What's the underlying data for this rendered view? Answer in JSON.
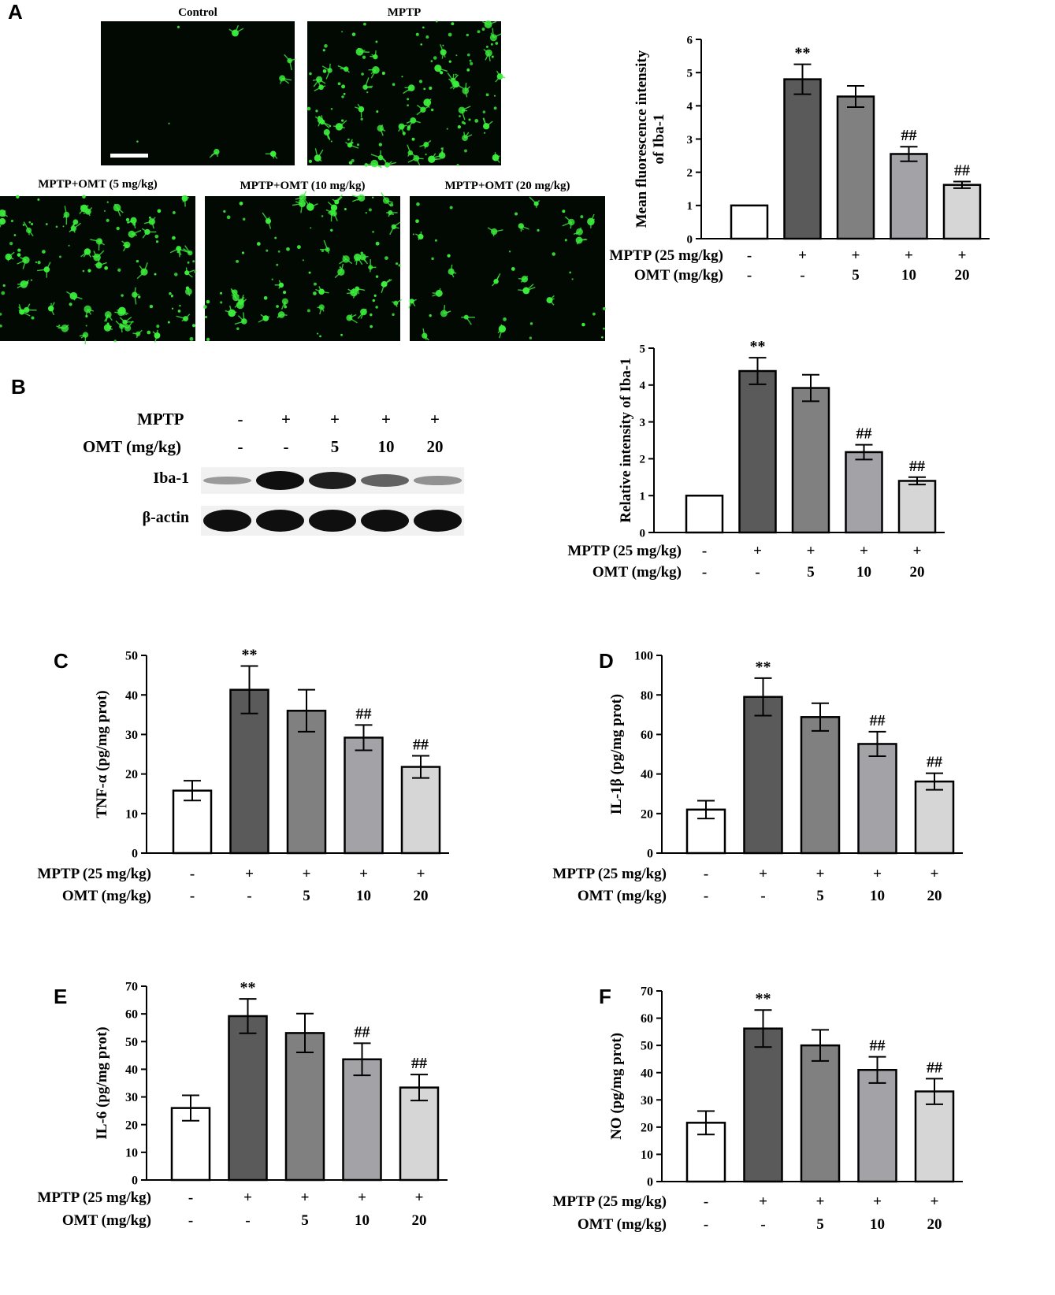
{
  "panels": {
    "A": "A",
    "B": "B",
    "C": "C",
    "D": "D",
    "E": "E",
    "F": "F"
  },
  "micrographs": [
    {
      "caption": "Control",
      "density": 8
    },
    {
      "caption": "MPTP",
      "density": 130
    },
    {
      "caption": "MPTP+OMT (5 mg/kg)",
      "density": 120
    },
    {
      "caption": "MPTP+OMT (10 mg/kg)",
      "density": 95
    },
    {
      "caption": "MPTP+OMT (20 mg/kg)",
      "density": 45
    }
  ],
  "western_blot": {
    "mptp_label": "MPTP",
    "omt_label": "OMT (mg/kg)",
    "mptp_signs": [
      "-",
      "+",
      "+",
      "+",
      "+"
    ],
    "omt_doses": [
      "-",
      "-",
      "5",
      "10",
      "20"
    ],
    "rows": [
      {
        "label": "Iba-1",
        "intensity": [
          0.25,
          1.0,
          0.92,
          0.55,
          0.3
        ]
      },
      {
        "label": "β-actin",
        "intensity": [
          1.0,
          1.0,
          1.0,
          1.0,
          1.0
        ]
      }
    ]
  },
  "treatment": {
    "mptp_label": "MPTP (25 mg/kg)",
    "omt_label": "OMT (mg/kg)",
    "mptp_signs": [
      "-",
      "+",
      "+",
      "+",
      "+"
    ],
    "omt_doses": [
      "-",
      "-",
      "5",
      "10",
      "20"
    ]
  },
  "colors": {
    "bars": [
      "#ffffff",
      "#5a5a5a",
      "#808080",
      "#a3a3a7",
      "#d6d6d6"
    ],
    "fluorescence": "#3cf03c"
  },
  "chart_data": [
    {
      "id": "A-chart",
      "type": "bar",
      "ylabel_lines": [
        "Mean fluorescence intensity",
        "of Iba-1"
      ],
      "ylim": [
        0,
        6
      ],
      "yticks": [
        0,
        1,
        2,
        3,
        4,
        5,
        6
      ],
      "values": [
        1.0,
        4.8,
        4.28,
        2.55,
        1.62
      ],
      "errors": [
        0,
        0.45,
        0.32,
        0.22,
        0.1
      ],
      "annotations": [
        "",
        "**",
        "",
        "##",
        "##"
      ]
    },
    {
      "id": "B-chart",
      "type": "bar",
      "ylabel_lines": [
        "Relative intensity of Iba-1"
      ],
      "ylim": [
        0,
        5
      ],
      "yticks": [
        0,
        1,
        2,
        3,
        4,
        5
      ],
      "values": [
        1.0,
        4.38,
        3.92,
        2.18,
        1.4
      ],
      "errors": [
        0,
        0.36,
        0.36,
        0.2,
        0.1
      ],
      "annotations": [
        "",
        "**",
        "",
        "##",
        "##"
      ]
    },
    {
      "id": "C-chart",
      "type": "bar",
      "ylabel_lines": [
        "TNF-α (pg/mg prot)"
      ],
      "ylim": [
        0,
        50
      ],
      "yticks": [
        0,
        10,
        20,
        30,
        40,
        50
      ],
      "values": [
        15.8,
        41.3,
        36.0,
        29.2,
        21.8
      ],
      "errors": [
        2.5,
        6.0,
        5.3,
        3.2,
        2.8
      ],
      "annotations": [
        "",
        "**",
        "",
        "##",
        "##"
      ]
    },
    {
      "id": "D-chart",
      "type": "bar",
      "ylabel_lines": [
        "IL-1β (pg/mg prot)"
      ],
      "ylim": [
        0,
        100
      ],
      "yticks": [
        0,
        20,
        40,
        60,
        80,
        100
      ],
      "values": [
        22.0,
        79.0,
        68.8,
        55.2,
        36.2
      ],
      "errors": [
        4.5,
        9.5,
        7.0,
        6.2,
        4.2
      ],
      "annotations": [
        "",
        "**",
        "",
        "##",
        "##"
      ]
    },
    {
      "id": "E-chart",
      "type": "bar",
      "ylabel_lines": [
        "IL-6 (pg/mg prot)"
      ],
      "ylim": [
        0,
        70
      ],
      "yticks": [
        0,
        10,
        20,
        30,
        40,
        50,
        60,
        70
      ],
      "values": [
        26.0,
        59.2,
        53.1,
        43.6,
        33.4
      ],
      "errors": [
        4.6,
        6.2,
        7.0,
        5.8,
        4.7
      ],
      "annotations": [
        "",
        "**",
        "",
        "##",
        "##"
      ]
    },
    {
      "id": "F-chart",
      "type": "bar",
      "ylabel_lines": [
        "NO  (pg/mg prot)"
      ],
      "ylim": [
        0,
        70
      ],
      "yticks": [
        0,
        10,
        20,
        30,
        40,
        50,
        60,
        70
      ],
      "values": [
        21.6,
        56.2,
        50.0,
        41.0,
        33.1
      ],
      "errors": [
        4.3,
        6.8,
        5.7,
        4.8,
        4.7
      ],
      "annotations": [
        "",
        "**",
        "",
        "##",
        "##"
      ]
    }
  ]
}
